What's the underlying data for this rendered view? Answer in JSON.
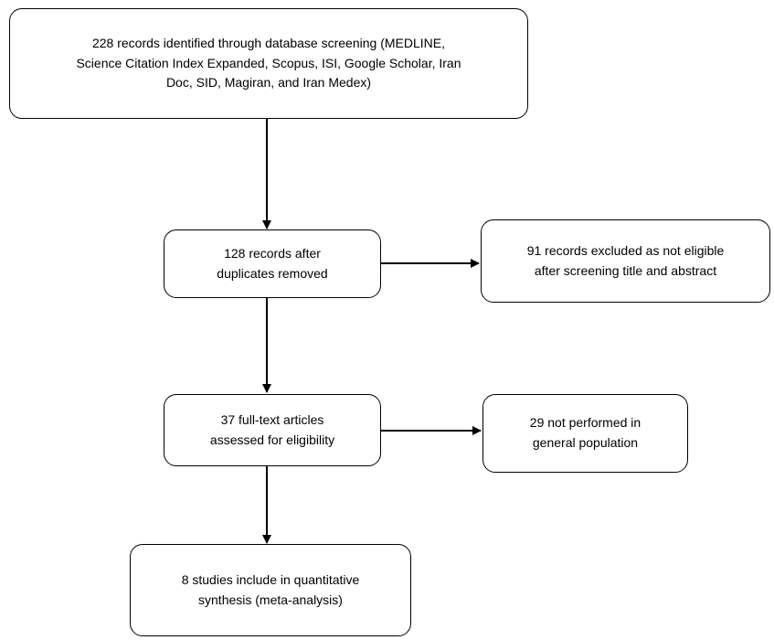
{
  "boxes": {
    "identified": "228 records identified through database screening (MEDLINE,\nScience Citation Index Expanded, Scopus, ISI, Google Scholar, Iran\nDoc, SID, Magiran, and Iran Medex)",
    "duplicates_removed": "128 records after\nduplicates removed",
    "excluded": "91 records excluded as not eligible\nafter screening title and abstract",
    "full_text": "37 full-text articles\nassessed for eligibility",
    "not_general_population": "29 not performed in\ngeneral population",
    "included": "8 studies include in quantitative\nsynthesis (meta-analysis)"
  },
  "colors": {
    "stroke": "#000000",
    "background": "#ffffff"
  }
}
